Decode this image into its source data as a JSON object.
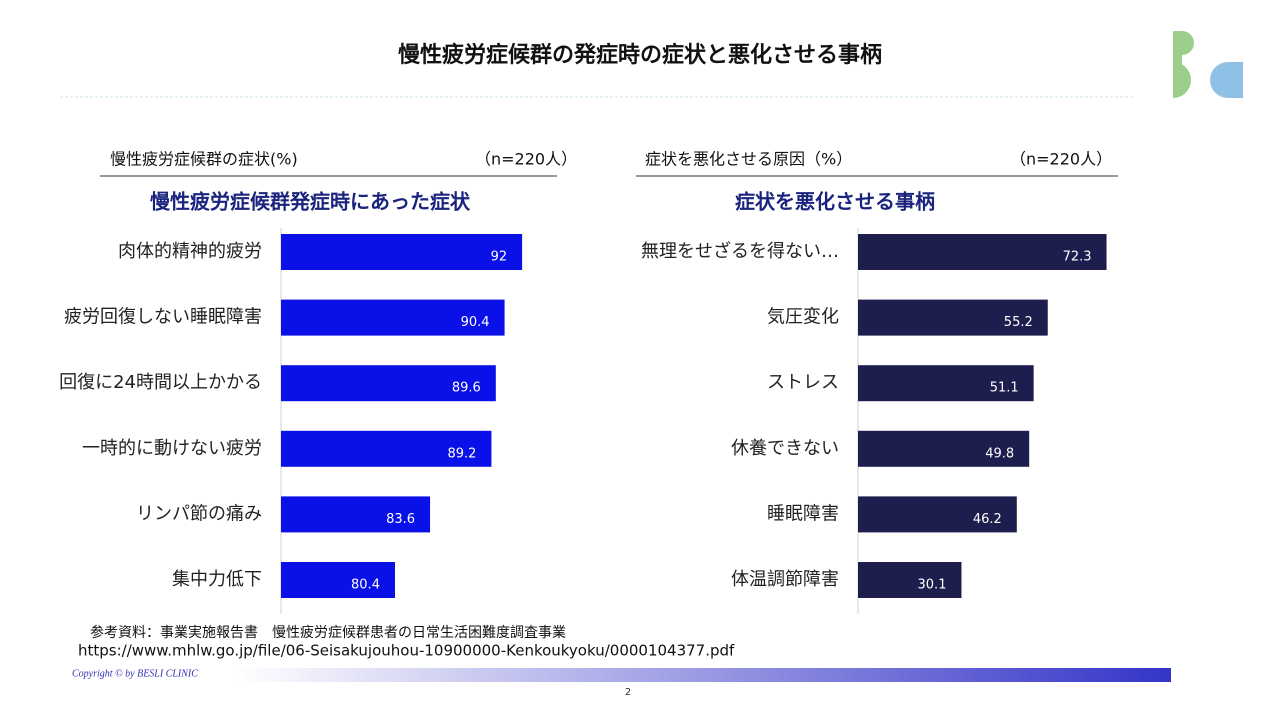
{
  "slide": {
    "title": "慢性疲労症候群の発症時の症状と悪化させる事柄",
    "source_line1": "参考資料：事業実施報告書　慢性疲労症候群患者の日常生活困難度調査事業",
    "source_line2": "https://www.mhlw.go.jp/file/06-Seisakujouhou-10900000-Kenkoukyoku/0000104377.pdf",
    "copyright": "Copyright ©  by   BESLI CLINIC",
    "page": "2"
  },
  "chart_data": [
    {
      "type": "bar",
      "orientation": "horizontal",
      "header": "慢性疲労症候群の症状(%)",
      "sample": "（n=220人）",
      "title": "慢性疲労症候群発症時にあった症状",
      "categories": [
        "肉体的精神的疲労",
        "疲労回復しない睡眠障害",
        "回復に24時間以上かかる",
        "一時的に動けない疲労",
        "リンパ節の痛み",
        "集中力低下"
      ],
      "values": [
        92,
        90.4,
        89.6,
        89.2,
        83.6,
        80.4
      ],
      "color": "#0a10e8",
      "xlim": [
        70,
        95
      ]
    },
    {
      "type": "bar",
      "orientation": "horizontal",
      "header": "症状を悪化させる原因（%）",
      "sample": "（n=220人）",
      "title": "症状を悪化させる事柄",
      "categories": [
        "無理をせざるを得ない…",
        "気圧変化",
        "ストレス",
        "休養できない",
        "睡眠障害",
        "体温調節障害"
      ],
      "values": [
        72.3,
        55.2,
        51.1,
        49.8,
        46.2,
        30.1
      ],
      "color": "#1e1e4e",
      "xlim": [
        0,
        80
      ]
    }
  ]
}
